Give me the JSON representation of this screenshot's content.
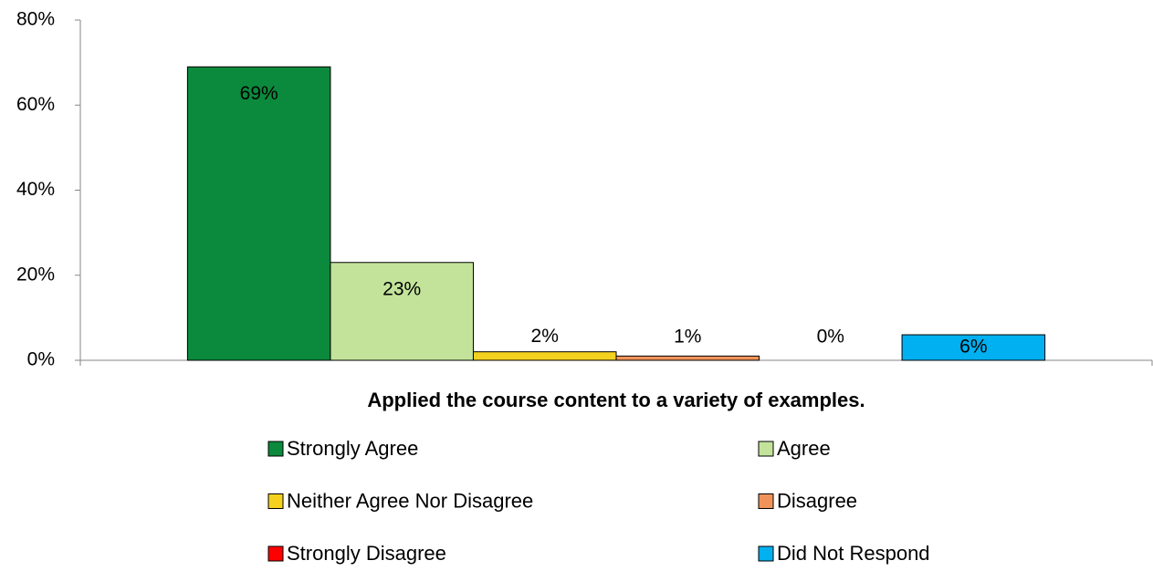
{
  "chart_data": {
    "type": "bar",
    "categories": [
      "Applied the course content to a variety of examples."
    ],
    "series": [
      {
        "name": "Strongly Agree",
        "color": "#0b8a3d",
        "values": [
          69
        ],
        "value_labels": [
          "69%"
        ]
      },
      {
        "name": "Agree",
        "color": "#c3e39b",
        "values": [
          23
        ],
        "value_labels": [
          "23%"
        ]
      },
      {
        "name": "Neither Agree Nor Disagree",
        "color": "#f5d11f",
        "values": [
          2
        ],
        "value_labels": [
          "2%"
        ]
      },
      {
        "name": "Disagree",
        "color": "#f0935a",
        "values": [
          1
        ],
        "value_labels": [
          "1%"
        ]
      },
      {
        "name": "Strongly Disagree",
        "color": "#ff0000",
        "values": [
          0
        ],
        "value_labels": [
          "0%"
        ]
      },
      {
        "name": "Did Not Respond",
        "color": "#00b0f0",
        "values": [
          6
        ],
        "value_labels": [
          "6%"
        ]
      }
    ],
    "ylim": [
      0,
      80
    ],
    "yticks": [
      {
        "value": 0,
        "label": "0%"
      },
      {
        "value": 20,
        "label": "20%"
      },
      {
        "value": 40,
        "label": "40%"
      },
      {
        "value": 60,
        "label": "60%"
      },
      {
        "value": 80,
        "label": "80%"
      }
    ],
    "grid": false,
    "legend": "bottom"
  }
}
